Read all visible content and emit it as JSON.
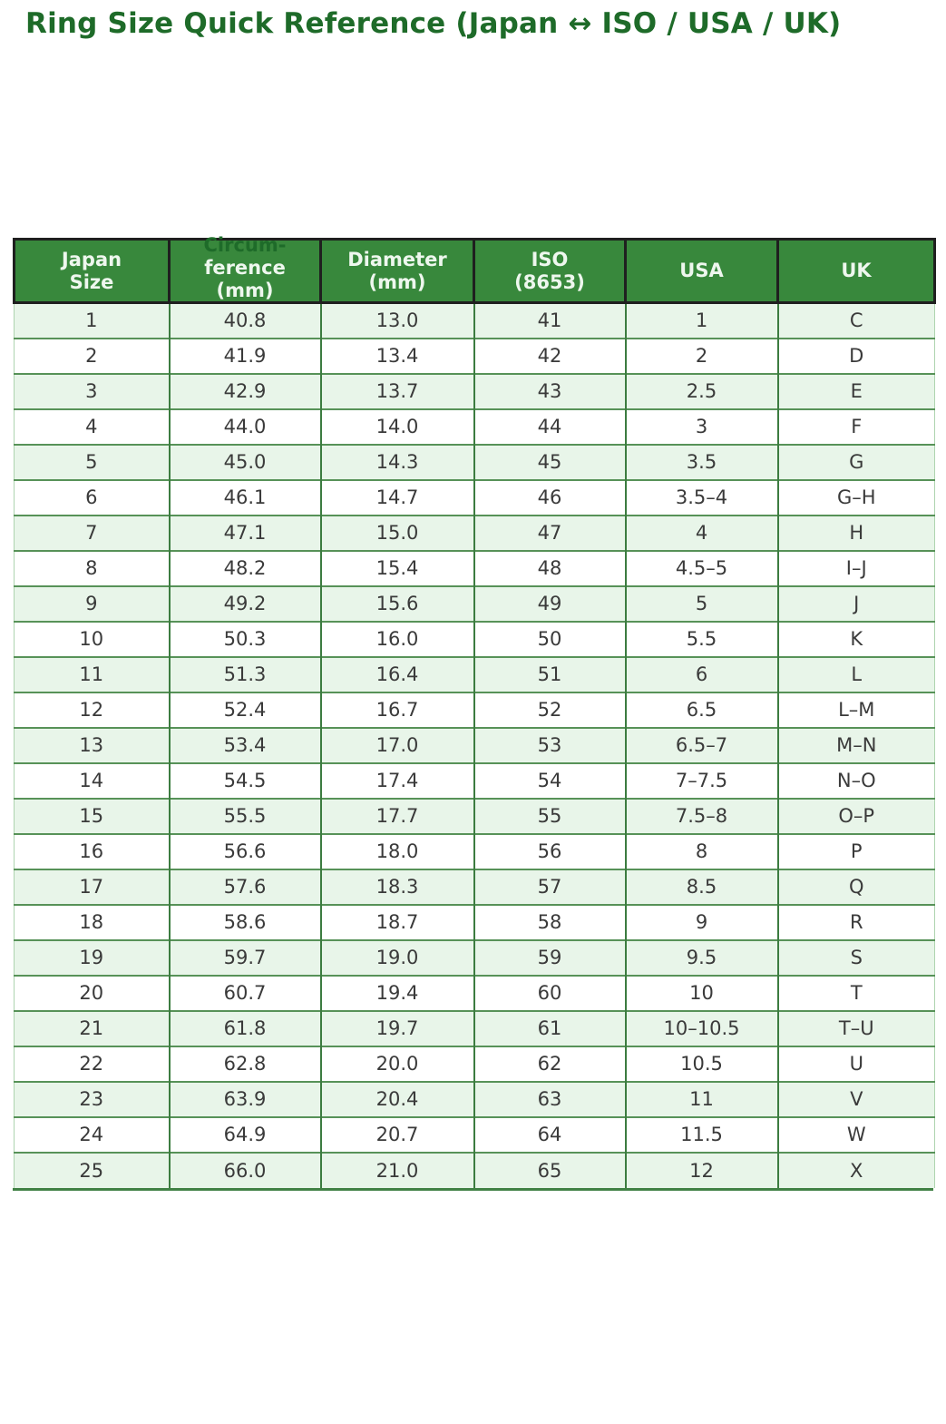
{
  "page": {
    "title": "Ring Size Quick Reference (Japan ↔ ISO / USA / UK)"
  },
  "colors": {
    "title_text": "#1e6b29",
    "header_bg": "#38883c",
    "header_text": "#eef7ee",
    "header_border": "#1f1f1f",
    "row_alt_bg": "#e8f5e9",
    "row_bg": "#ffffff",
    "row_line": "#579258",
    "col_line": "#3c7c40",
    "outer_line": "#aed4af",
    "bottom_border": "#418145",
    "cell_text": "#3a3a3a"
  },
  "table": {
    "headers": [
      {
        "lines": [
          "Japan",
          "Size"
        ]
      },
      {
        "lines": [
          "Circum-",
          "ference",
          "(mm)"
        ]
      },
      {
        "lines": [
          "Diameter",
          "(mm)"
        ]
      },
      {
        "lines": [
          "ISO",
          "(8653)"
        ]
      },
      {
        "lines": [
          "USA"
        ]
      },
      {
        "lines": [
          "UK"
        ]
      }
    ]
  },
  "chart_data": {
    "type": "table",
    "title": "Ring Size Quick Reference (Japan ↔ ISO / USA / UK)",
    "columns": [
      "Japan Size",
      "Circumference (mm)",
      "Diameter (mm)",
      "ISO (8653)",
      "USA",
      "UK"
    ],
    "rows": [
      [
        "1",
        "40.8",
        "13.0",
        "41",
        "1",
        "C"
      ],
      [
        "2",
        "41.9",
        "13.4",
        "42",
        "2",
        "D"
      ],
      [
        "3",
        "42.9",
        "13.7",
        "43",
        "2.5",
        "E"
      ],
      [
        "4",
        "44.0",
        "14.0",
        "44",
        "3",
        "F"
      ],
      [
        "5",
        "45.0",
        "14.3",
        "45",
        "3.5",
        "G"
      ],
      [
        "6",
        "46.1",
        "14.7",
        "46",
        "3.5–4",
        "G–H"
      ],
      [
        "7",
        "47.1",
        "15.0",
        "47",
        "4",
        "H"
      ],
      [
        "8",
        "48.2",
        "15.4",
        "48",
        "4.5–5",
        "I–J"
      ],
      [
        "9",
        "49.2",
        "15.6",
        "49",
        "5",
        "J"
      ],
      [
        "10",
        "50.3",
        "16.0",
        "50",
        "5.5",
        "K"
      ],
      [
        "11",
        "51.3",
        "16.4",
        "51",
        "6",
        "L"
      ],
      [
        "12",
        "52.4",
        "16.7",
        "52",
        "6.5",
        "L–M"
      ],
      [
        "13",
        "53.4",
        "17.0",
        "53",
        "6.5–7",
        "M–N"
      ],
      [
        "14",
        "54.5",
        "17.4",
        "54",
        "7–7.5",
        "N–O"
      ],
      [
        "15",
        "55.5",
        "17.7",
        "55",
        "7.5–8",
        "O–P"
      ],
      [
        "16",
        "56.6",
        "18.0",
        "56",
        "8",
        "P"
      ],
      [
        "17",
        "57.6",
        "18.3",
        "57",
        "8.5",
        "Q"
      ],
      [
        "18",
        "58.6",
        "18.7",
        "58",
        "9",
        "R"
      ],
      [
        "19",
        "59.7",
        "19.0",
        "59",
        "9.5",
        "S"
      ],
      [
        "20",
        "60.7",
        "19.4",
        "60",
        "10",
        "T"
      ],
      [
        "21",
        "61.8",
        "19.7",
        "61",
        "10–10.5",
        "T–U"
      ],
      [
        "22",
        "62.8",
        "20.0",
        "62",
        "10.5",
        "U"
      ],
      [
        "23",
        "63.9",
        "20.4",
        "63",
        "11",
        "V"
      ],
      [
        "24",
        "64.9",
        "20.7",
        "64",
        "11.5",
        "W"
      ],
      [
        "25",
        "66.0",
        "21.0",
        "65",
        "12",
        "X"
      ]
    ]
  }
}
